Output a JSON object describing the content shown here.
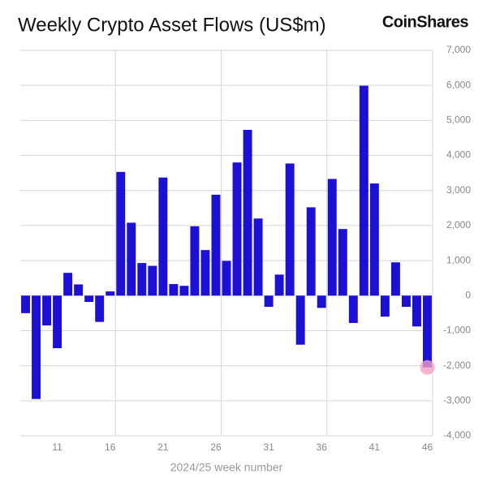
{
  "chart_data": {
    "type": "bar",
    "title": "Weekly Crypto Asset Flows (US$m)",
    "brand": "CoinShares",
    "x_label": "2024/25 week number",
    "x": [
      8,
      9,
      10,
      11,
      12,
      13,
      14,
      15,
      16,
      17,
      18,
      19,
      20,
      21,
      22,
      23,
      24,
      25,
      26,
      27,
      28,
      29,
      30,
      31,
      32,
      33,
      34,
      35,
      36,
      37,
      38,
      39,
      40,
      41,
      42,
      43,
      44,
      45,
      46
    ],
    "values": [
      -500,
      -2950,
      -850,
      -1500,
      650,
      320,
      -180,
      -750,
      120,
      3530,
      2080,
      930,
      850,
      3370,
      330,
      280,
      1980,
      1300,
      2880,
      990,
      3800,
      4730,
      2200,
      -320,
      600,
      3770,
      -1400,
      2520,
      -350,
      3330,
      1900,
      -780,
      5990,
      3200,
      -600,
      950,
      -320,
      -880,
      -2050
    ],
    "color": "#1c10d4",
    "xlim": [
      7.5,
      46.5
    ],
    "xticks": [
      11,
      16,
      21,
      26,
      31,
      36,
      41,
      46
    ],
    "ylim": [
      -4000,
      7000
    ],
    "yticks": [
      {
        "value": -4000,
        "label": "-4,000"
      },
      {
        "value": -3000,
        "label": "-3,000"
      },
      {
        "value": -2000,
        "label": "-2,000"
      },
      {
        "value": -1000,
        "label": "-1,000"
      },
      0,
      {
        "value": 1000,
        "label": "1,000"
      },
      {
        "value": 2000,
        "label": "2,000"
      },
      {
        "value": 3000,
        "label": "3,000"
      },
      {
        "value": 4000,
        "label": "4,000"
      },
      {
        "value": 5000,
        "label": "5,000"
      },
      {
        "value": 6000,
        "label": "6,000"
      },
      {
        "value": 7000,
        "label": "7,000"
      }
    ],
    "grid": true
  }
}
